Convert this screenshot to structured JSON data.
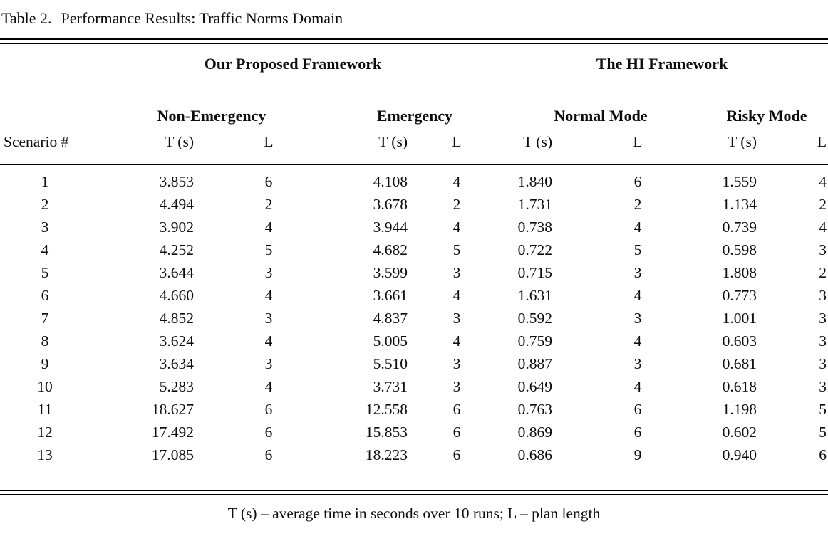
{
  "title": {
    "label": "Table 2.",
    "caption": "Performance Results: Traffic Norms Domain"
  },
  "table": {
    "group_headers": {
      "proposed": "Our Proposed Framework",
      "hi": "The HI Framework"
    },
    "subgroup_headers": {
      "non_emergency": "Non-Emergency",
      "emergency": "Emergency",
      "normal_mode": "Normal Mode",
      "risky_mode": "Risky Mode"
    },
    "column_headers": {
      "scenario": "Scenario #",
      "time": "T (s)",
      "length": "L"
    },
    "rows": [
      [
        "1",
        "3.853",
        "6",
        "4.108",
        "4",
        "1.840",
        "6",
        "1.559",
        "4"
      ],
      [
        "2",
        "4.494",
        "2",
        "3.678",
        "2",
        "1.731",
        "2",
        "1.134",
        "2"
      ],
      [
        "3",
        "3.902",
        "4",
        "3.944",
        "4",
        "0.738",
        "4",
        "0.739",
        "4"
      ],
      [
        "4",
        "4.252",
        "5",
        "4.682",
        "5",
        "0.722",
        "5",
        "0.598",
        "3"
      ],
      [
        "5",
        "3.644",
        "3",
        "3.599",
        "3",
        "0.715",
        "3",
        "1.808",
        "2"
      ],
      [
        "6",
        "4.660",
        "4",
        "3.661",
        "4",
        "1.631",
        "4",
        "0.773",
        "3"
      ],
      [
        "7",
        "4.852",
        "3",
        "4.837",
        "3",
        "0.592",
        "3",
        "1.001",
        "3"
      ],
      [
        "8",
        "3.624",
        "4",
        "5.005",
        "4",
        "0.759",
        "4",
        "0.603",
        "3"
      ],
      [
        "9",
        "3.634",
        "3",
        "5.510",
        "3",
        "0.887",
        "3",
        "0.681",
        "3"
      ],
      [
        "10",
        "5.283",
        "4",
        "3.731",
        "3",
        "0.649",
        "4",
        "0.618",
        "3"
      ],
      [
        "11",
        "18.627",
        "6",
        "12.558",
        "6",
        "0.763",
        "6",
        "1.198",
        "5"
      ],
      [
        "12",
        "17.492",
        "6",
        "15.853",
        "6",
        "0.869",
        "6",
        "0.602",
        "5"
      ],
      [
        "13",
        "17.085",
        "6",
        "18.223",
        "6",
        "0.686",
        "9",
        "0.940",
        "6"
      ]
    ]
  },
  "footnote": "T (s) – average time in seconds over 10 runs; L – plan length",
  "colors": {
    "text": "#0d0d0d",
    "rule": "#000000",
    "background": "#ffffff"
  }
}
